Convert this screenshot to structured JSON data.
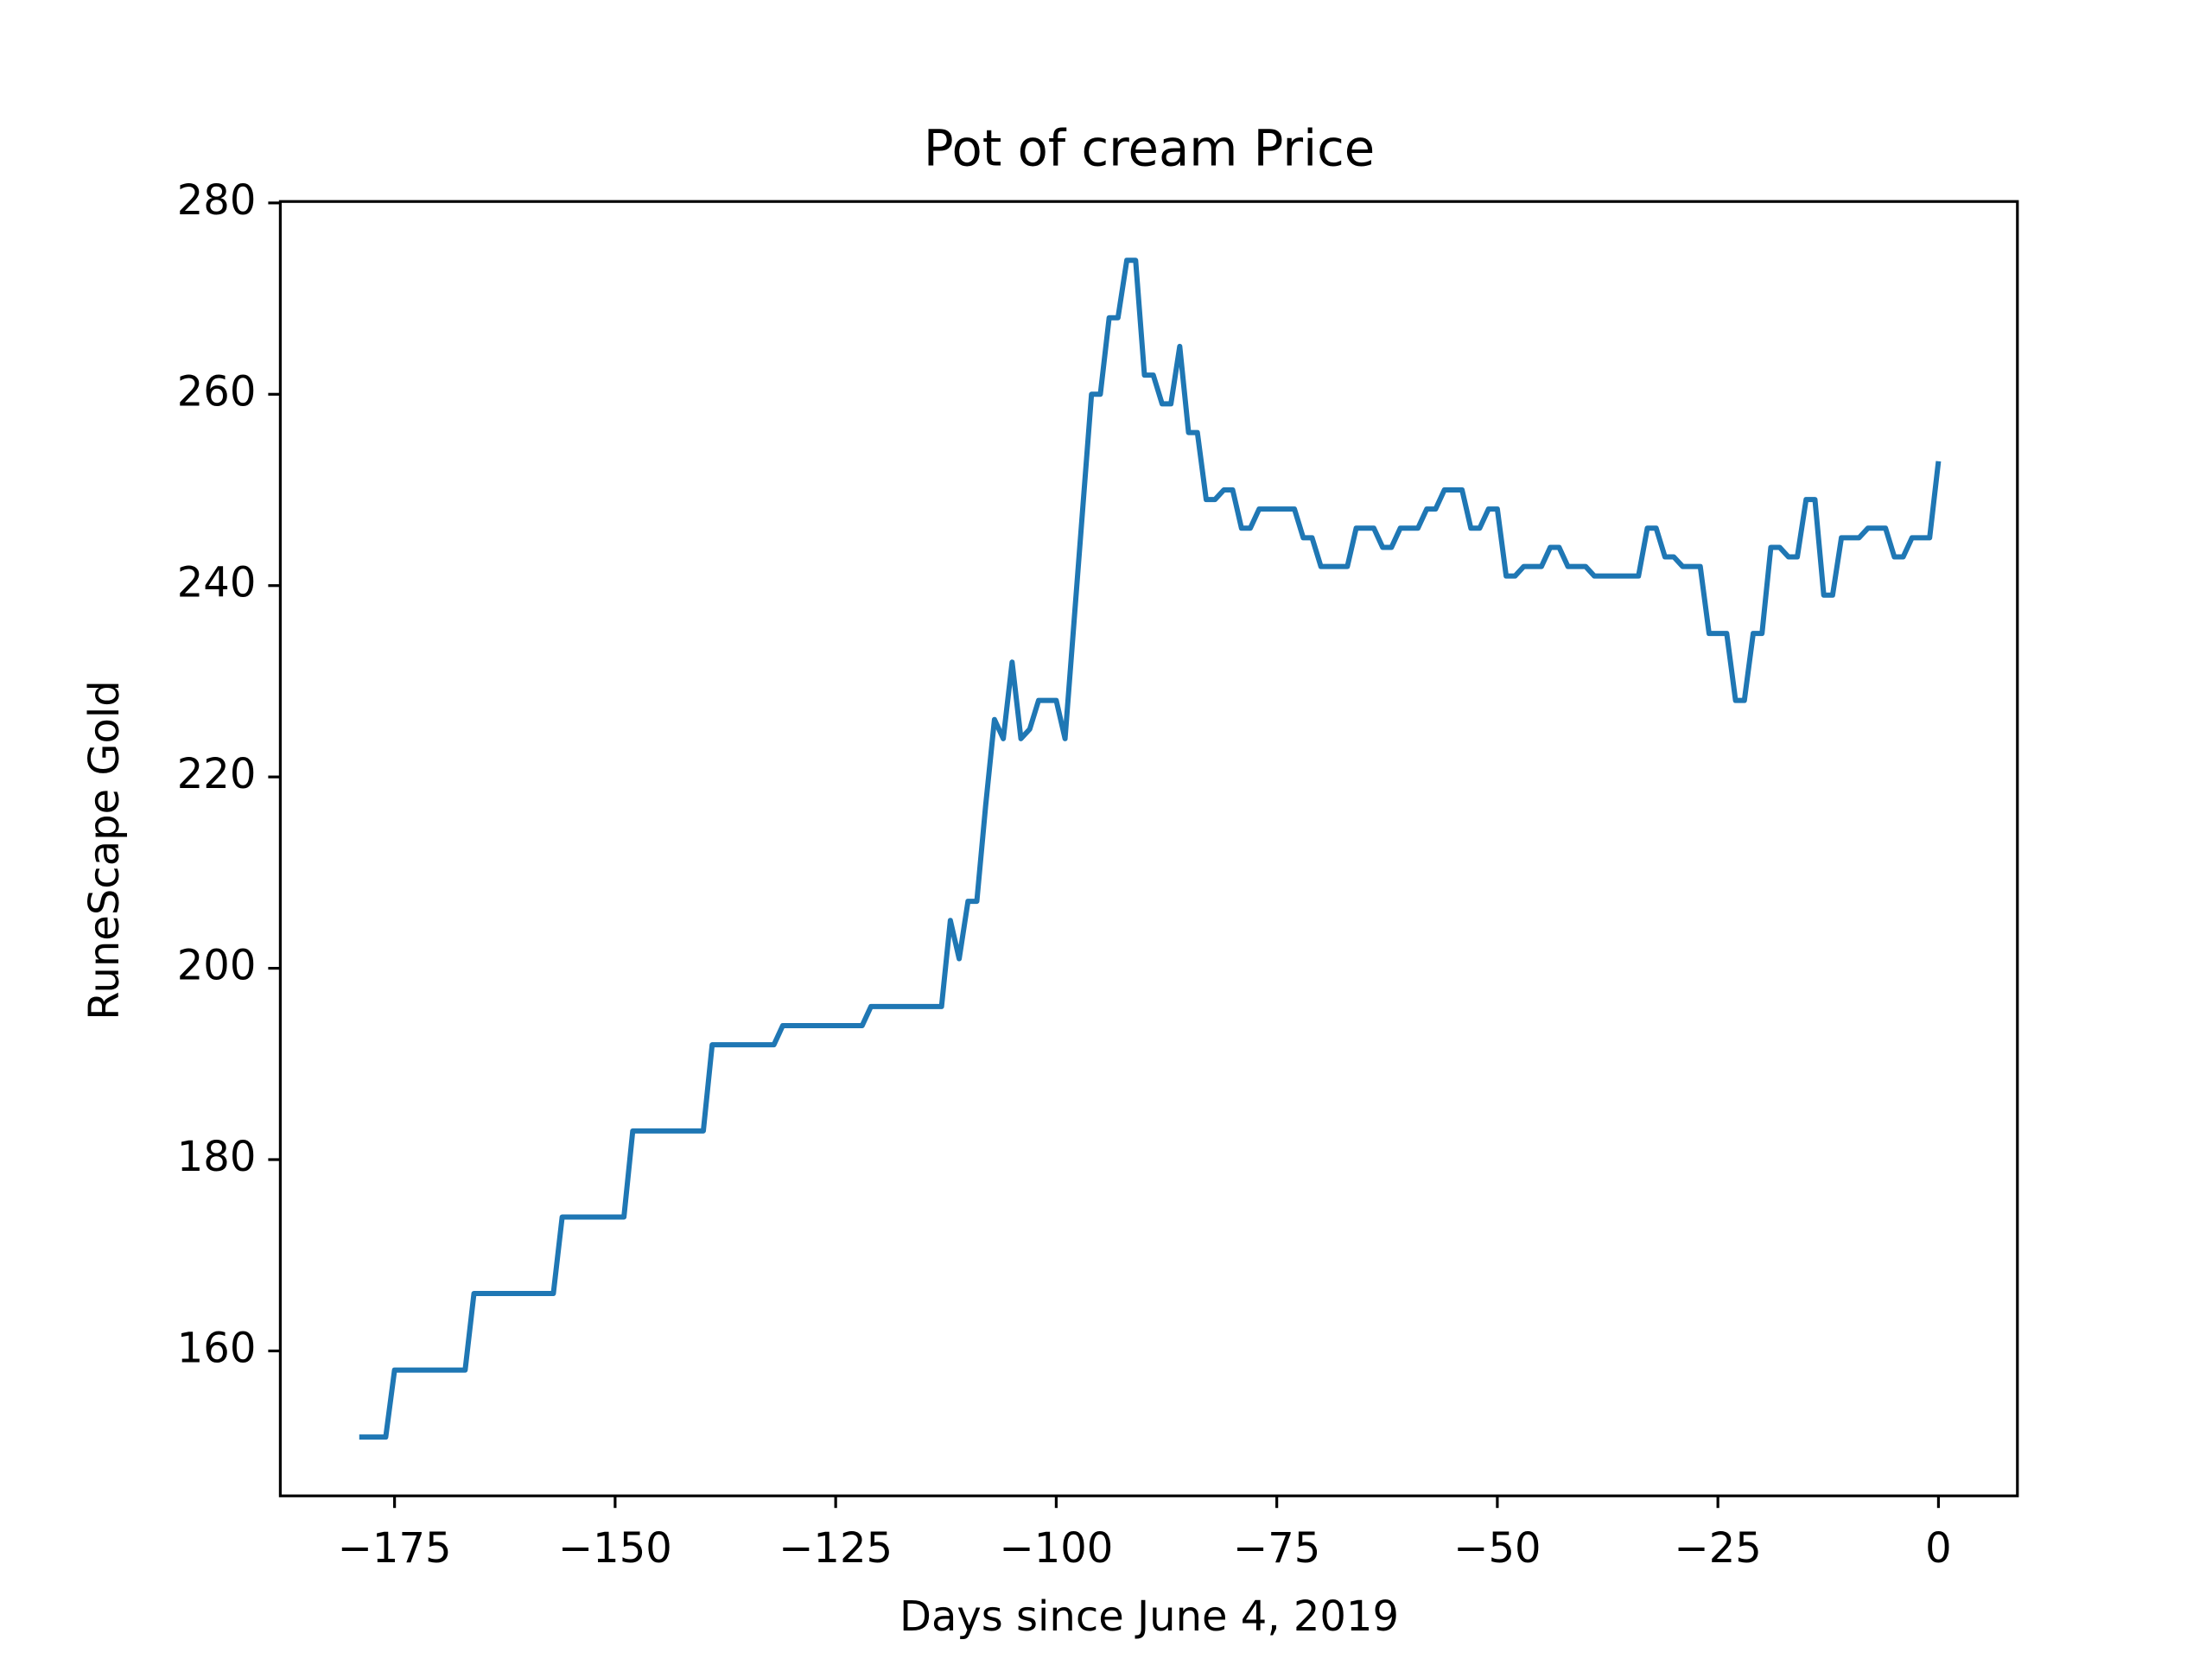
{
  "chart_data": {
    "type": "line",
    "title": "Pot of cream Price",
    "x_label": "Days since June 4, 2019",
    "y_label": "RuneScape Gold",
    "x": [
      -179,
      -178,
      -177,
      -176,
      -175,
      -174,
      -173,
      -172,
      -171,
      -170,
      -169,
      -168,
      -167,
      -166,
      -165,
      -164,
      -163,
      -162,
      -161,
      -160,
      -159,
      -158,
      -157,
      -156,
      -155,
      -154,
      -153,
      -152,
      -151,
      -150,
      -149,
      -148,
      -147,
      -146,
      -145,
      -144,
      -143,
      -142,
      -141,
      -140,
      -139,
      -138,
      -137,
      -136,
      -135,
      -134,
      -133,
      -132,
      -131,
      -130,
      -129,
      -128,
      -127,
      -126,
      -125,
      -124,
      -123,
      -122,
      -121,
      -120,
      -119,
      -118,
      -117,
      -116,
      -115,
      -114,
      -113,
      -112,
      -111,
      -110,
      -109,
      -108,
      -107,
      -106,
      -105,
      -104,
      -103,
      -102,
      -101,
      -100,
      -99,
      -98,
      -97,
      -96,
      -95,
      -94,
      -93,
      -92,
      -91,
      -90,
      -89,
      -88,
      -87,
      -86,
      -85,
      -84,
      -83,
      -82,
      -81,
      -80,
      -79,
      -78,
      -77,
      -76,
      -75,
      -74,
      -73,
      -72,
      -71,
      -70,
      -69,
      -68,
      -67,
      -66,
      -65,
      -64,
      -63,
      -62,
      -61,
      -60,
      -59,
      -58,
      -57,
      -56,
      -55,
      -54,
      -53,
      -52,
      -51,
      -50,
      -49,
      -48,
      -47,
      -46,
      -45,
      -44,
      -43,
      -42,
      -41,
      -40,
      -39,
      -38,
      -37,
      -36,
      -35,
      -34,
      -33,
      -32,
      -31,
      -30,
      -29,
      -28,
      -27,
      -26,
      -25,
      -24,
      -23,
      -22,
      -21,
      -20,
      -19,
      -18,
      -17,
      -16,
      -15,
      -14,
      -13,
      -12,
      -11,
      -10,
      -9,
      -8,
      -7,
      -6,
      -5,
      -4,
      -3,
      -2,
      -1,
      0
    ],
    "series": [
      {
        "name": "Pot of cream",
        "color": "#1f77b4",
        "values": [
          151,
          151,
          151,
          151,
          158,
          158,
          158,
          158,
          158,
          158,
          158,
          158,
          158,
          166,
          166,
          166,
          166,
          166,
          166,
          166,
          166,
          166,
          166,
          174,
          174,
          174,
          174,
          174,
          174,
          174,
          174,
          183,
          183,
          183,
          183,
          183,
          183,
          183,
          183,
          183,
          192,
          192,
          192,
          192,
          192,
          192,
          192,
          192,
          194,
          194,
          194,
          194,
          194,
          194,
          194,
          194,
          194,
          194,
          196,
          196,
          196,
          196,
          196,
          196,
          196,
          196,
          196,
          205,
          201,
          207,
          207,
          217,
          226,
          224,
          232,
          224,
          225,
          228,
          228,
          228,
          224,
          236,
          248,
          260,
          260,
          268,
          268,
          274,
          274,
          262,
          262,
          259,
          259,
          265,
          256,
          256,
          249,
          249,
          250,
          250,
          246,
          246,
          248,
          248,
          248,
          248,
          248,
          245,
          245,
          242,
          242,
          242,
          242,
          246,
          246,
          246,
          244,
          244,
          246,
          246,
          246,
          248,
          248,
          250,
          250,
          250,
          246,
          246,
          248,
          248,
          241,
          241,
          242,
          242,
          242,
          244,
          244,
          242,
          242,
          242,
          241,
          241,
          241,
          241,
          241,
          241,
          246,
          246,
          243,
          243,
          242,
          242,
          242,
          235,
          235,
          235,
          228,
          228,
          235,
          235,
          244,
          244,
          243,
          243,
          249,
          249,
          239,
          239,
          245,
          245,
          245,
          246,
          246,
          246,
          243,
          243,
          245,
          245,
          245,
          253
        ]
      }
    ],
    "xlim": [
      -187.95,
      8.95
    ],
    "ylim": [
      144.85,
      280.15
    ],
    "xticks": [
      {
        "value": -175,
        "label": "−175"
      },
      {
        "value": -150,
        "label": "−150"
      },
      {
        "value": -125,
        "label": "−125"
      },
      {
        "value": -100,
        "label": "−100"
      },
      {
        "value": -75,
        "label": "−75"
      },
      {
        "value": -50,
        "label": "−50"
      },
      {
        "value": -25,
        "label": "−25"
      },
      0
    ],
    "yticks": [
      160,
      180,
      200,
      220,
      240,
      260,
      280
    ]
  }
}
